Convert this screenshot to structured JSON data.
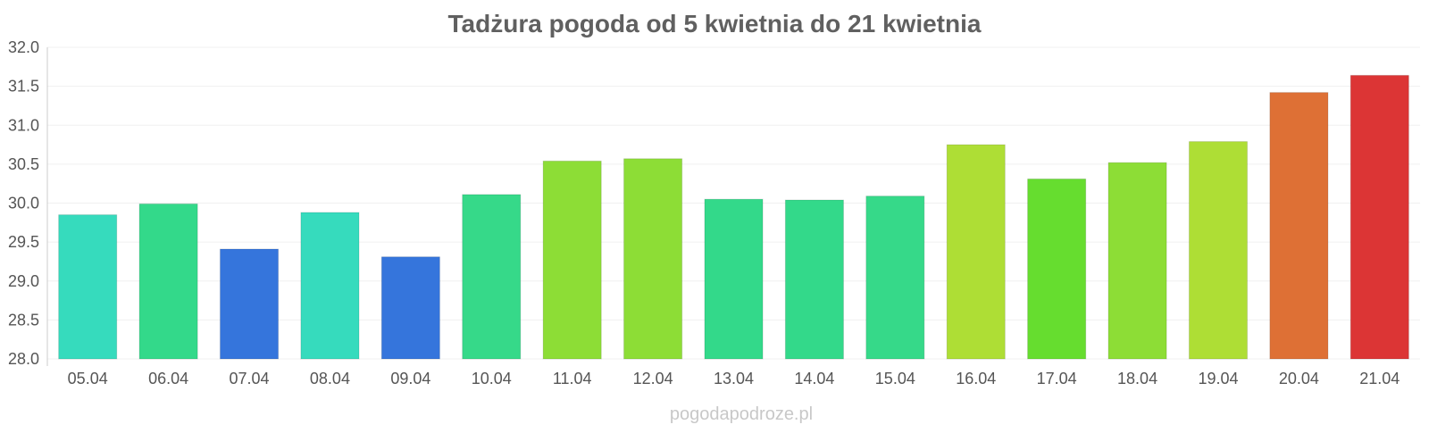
{
  "chart_data": {
    "type": "bar",
    "title": "Tadżura pogoda od 5 kwietnia do 21 kwietnia",
    "xlabel": "",
    "ylabel": "",
    "ylim": [
      28.0,
      32.0
    ],
    "yticks": [
      "28.0",
      "28.5",
      "29.0",
      "29.5",
      "30.0",
      "30.5",
      "31.0",
      "31.5",
      "32.0"
    ],
    "categories": [
      "05.04",
      "06.04",
      "07.04",
      "08.04",
      "09.04",
      "10.04",
      "11.04",
      "12.04",
      "13.04",
      "14.04",
      "15.04",
      "16.04",
      "17.04",
      "18.04",
      "19.04",
      "20.04",
      "21.04"
    ],
    "values": [
      29.85,
      29.99,
      29.41,
      29.88,
      29.31,
      30.11,
      30.54,
      30.57,
      30.05,
      30.04,
      30.09,
      30.75,
      30.31,
      30.52,
      30.79,
      31.42,
      31.64
    ],
    "colors": [
      "#36dbbd",
      "#33d98a",
      "#3575dc",
      "#36dbbd",
      "#3575dc",
      "#36d989",
      "#8ddd36",
      "#8ddd36",
      "#33d98a",
      "#33d98a",
      "#36d989",
      "#aede35",
      "#66dd2f",
      "#8ddd36",
      "#aede35",
      "#de7035",
      "#dc3535"
    ],
    "grid": true,
    "legend": "none"
  },
  "watermark": "pogodapodroze.pl"
}
